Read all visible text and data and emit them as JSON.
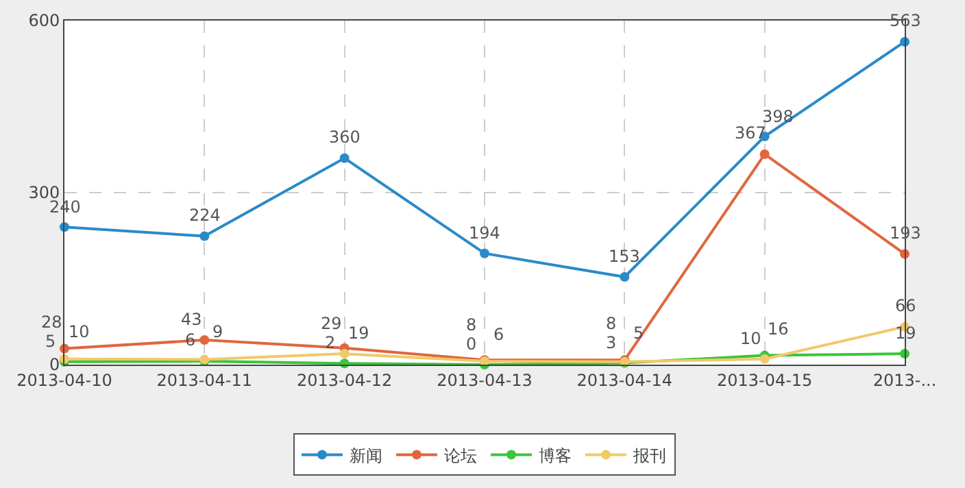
{
  "chart_data": {
    "type": "line",
    "categories": [
      "2013-04-10",
      "2013-04-11",
      "2013-04-12",
      "2013-04-13",
      "2013-04-14",
      "2013-04-15",
      "2013-..."
    ],
    "series": [
      {
        "name": "新闻",
        "color": "#2a8ac8",
        "values": [
          240,
          224,
          360,
          194,
          153,
          398,
          563
        ]
      },
      {
        "name": "论坛",
        "color": "#e0663f",
        "values": [
          28,
          43,
          29,
          8,
          8,
          367,
          193
        ]
      },
      {
        "name": "博客",
        "color": "#3ac53a",
        "values": [
          5,
          6,
          2,
          0,
          3,
          16,
          19
        ]
      },
      {
        "name": "报刊",
        "color": "#f0c96a",
        "values": [
          10,
          9,
          19,
          6,
          5,
          10,
          66
        ]
      }
    ],
    "ylim": [
      0,
      600
    ],
    "yticks": [
      0,
      300,
      600
    ],
    "grid": true,
    "legend": "bottom",
    "marker": "circle",
    "line_style": "solid",
    "data_labels": true
  }
}
